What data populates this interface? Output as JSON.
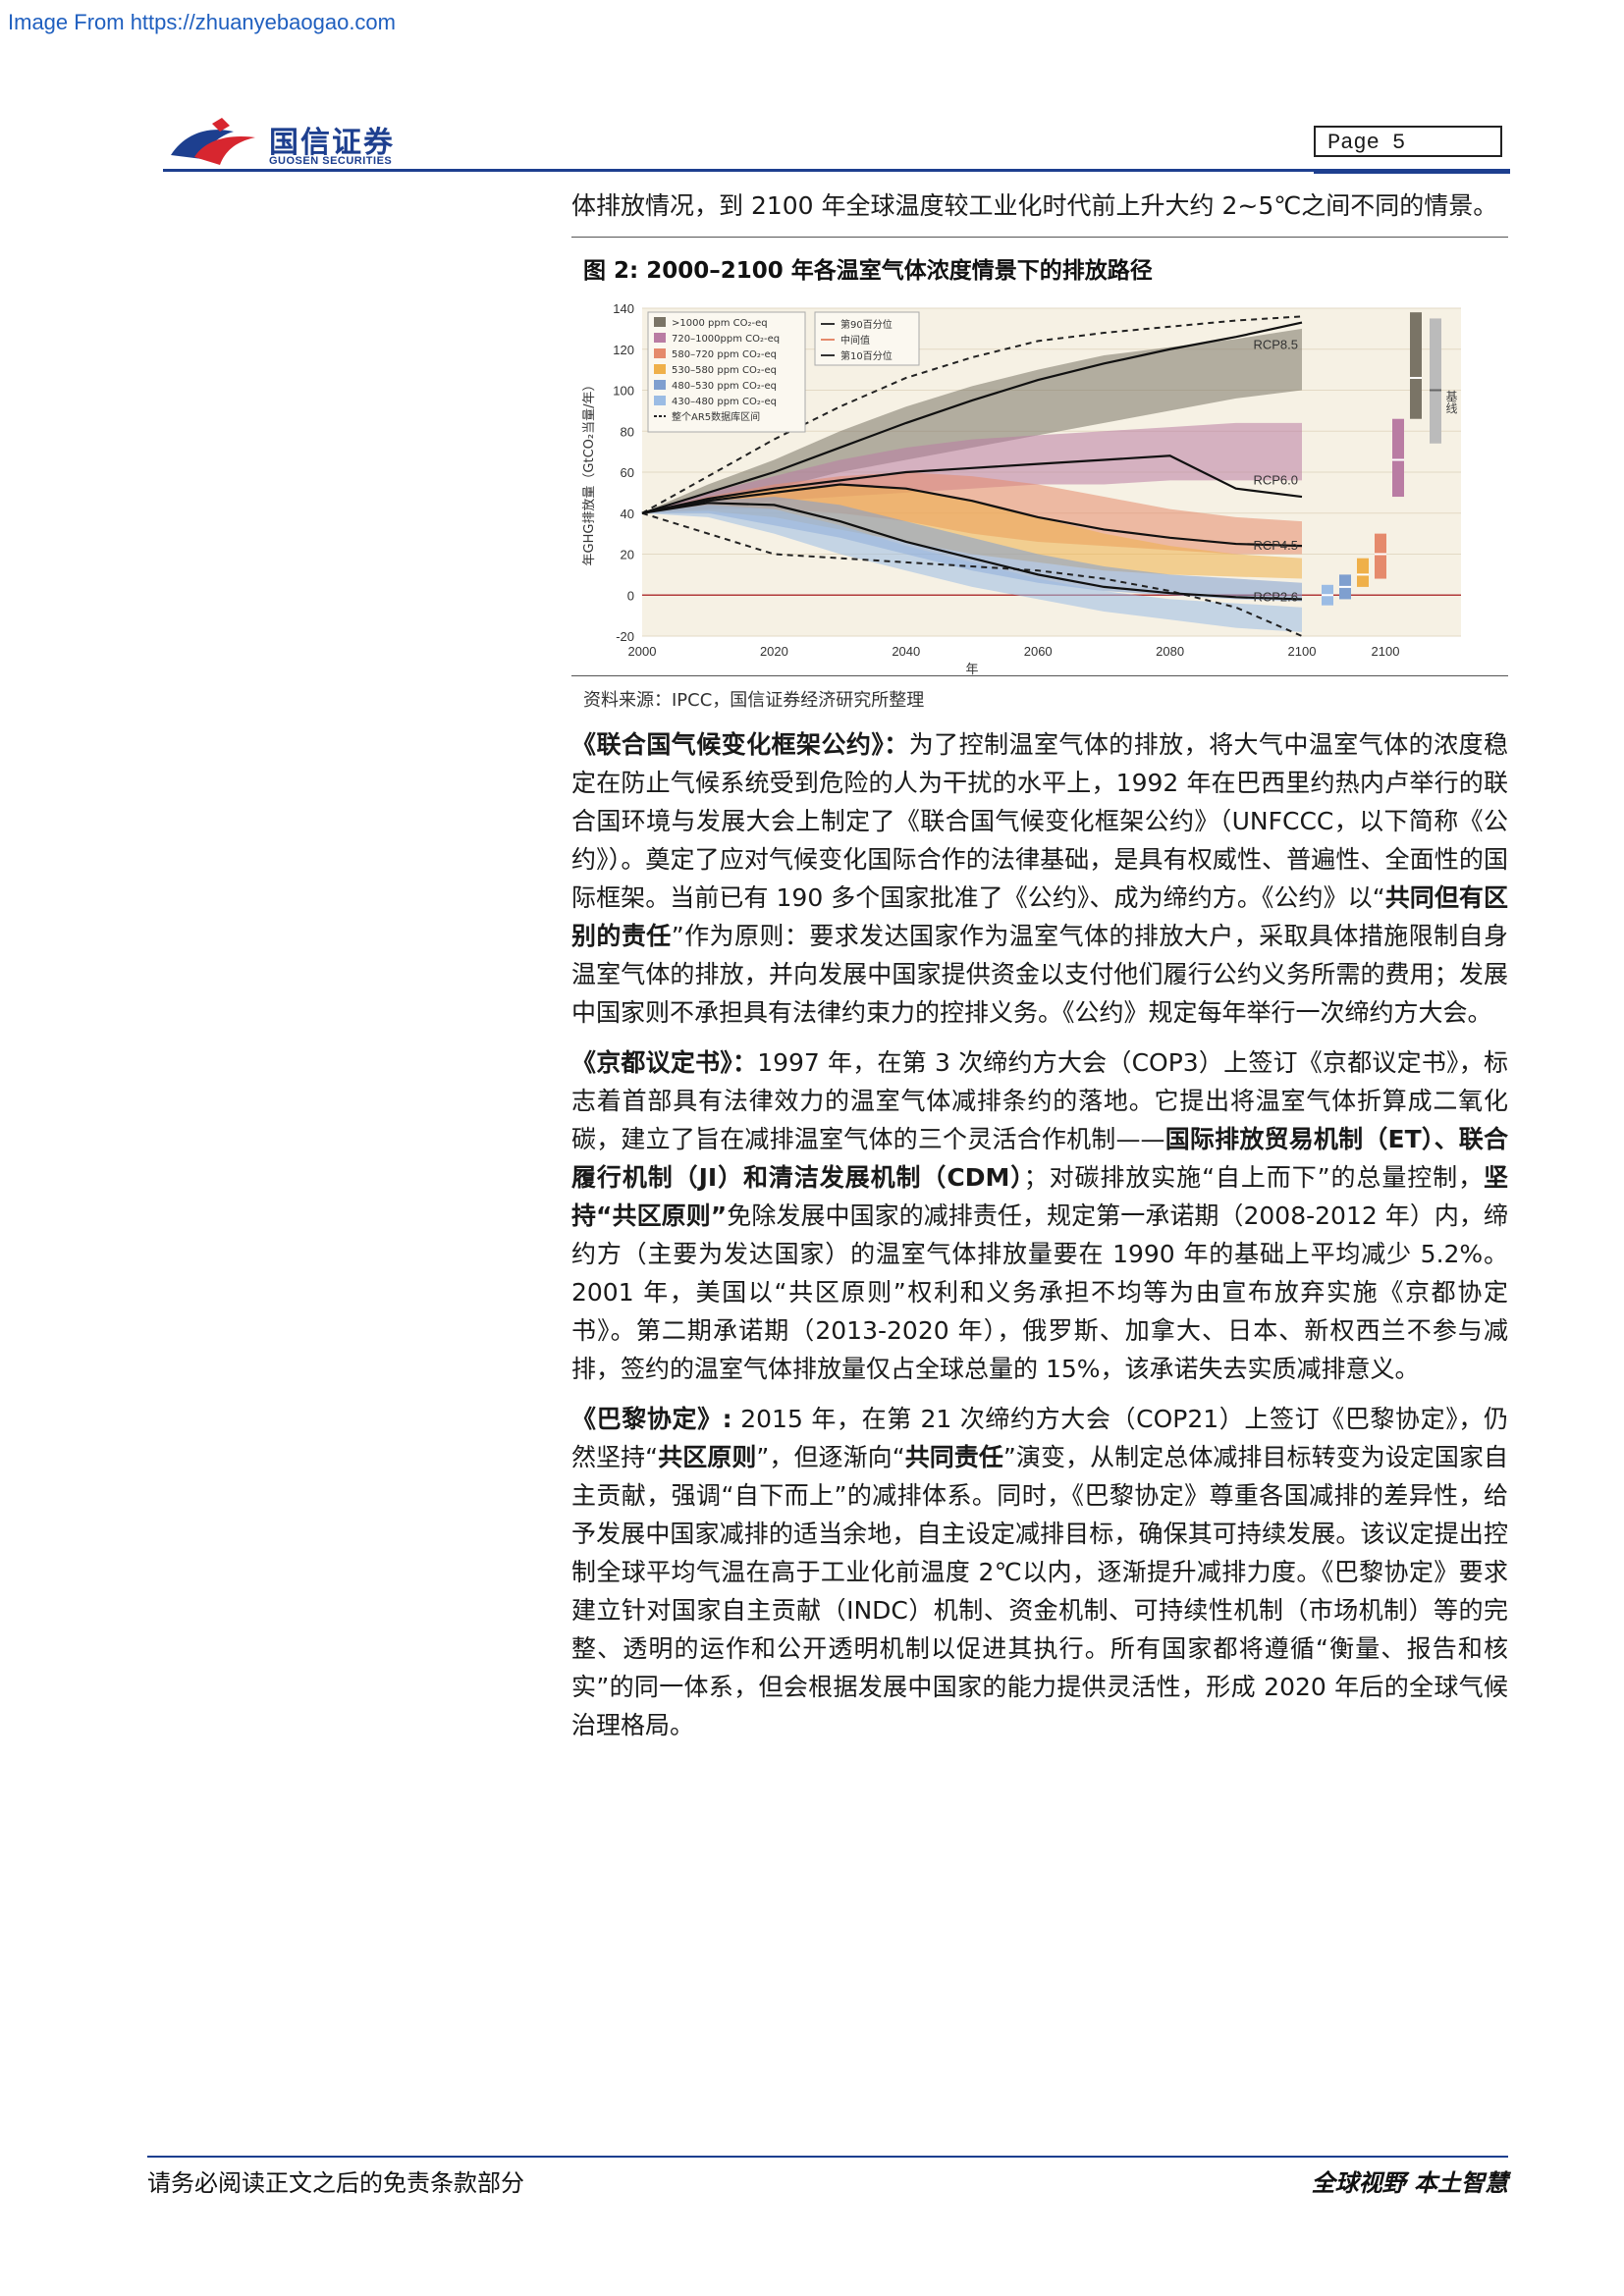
{
  "watermark": "Image From https://zhuanyebaogao.com",
  "header": {
    "logo_cn": "国信证券",
    "logo_en": "GUOSEN SECURITIES",
    "page_label": "Page  5"
  },
  "intro": "体排放情况，到 2100 年全球温度较工业化时代前上升大约 2~5℃之间不同的情景。",
  "figure": {
    "title": "图 2:  2000–2100 年各温室气体浓度情景下的排放路径",
    "source": "资料来源：IPCC，国信证券经济研究所整理"
  },
  "chart_data": {
    "type": "area",
    "title": "",
    "xlabel": "年",
    "ylabel": "年GHG排放量（GtCO₂当量/年）",
    "xlim": [
      2000,
      2100
    ],
    "ylim": [
      -20,
      140
    ],
    "x_ticks": [
      "2000",
      "2020",
      "2040",
      "2060",
      "2080",
      "2100",
      "2100"
    ],
    "y_ticks": [
      "-20",
      "0",
      "20",
      "40",
      "60",
      "80",
      "100",
      "120",
      "140"
    ],
    "legend_left": [
      ">1000   ppm CO₂-eq",
      "720–1000ppm CO₂-eq",
      "580–720  ppm CO₂-eq",
      "530–580  ppm CO₂-eq",
      "480–530  ppm CO₂-eq",
      "430–480  ppm CO₂-eq",
      "整个AR5数据库区间"
    ],
    "legend_right": [
      "第90百分位",
      "中间值",
      "第10百分位"
    ],
    "rcp_labels": [
      "RCP8.5",
      "RCP6.0",
      "RCP4.5",
      "RCP2.6"
    ],
    "side_label": "基线",
    "colors": {
      "gt1000": "#7a7466",
      "c720_1000": "#b97ca3",
      "c580_720": "#e58a6c",
      "c530_580": "#efb04a",
      "c480_530": "#7f9fcf",
      "c430_480": "#9bbce4",
      "background": "#f6f1e4"
    },
    "x": [
      2000,
      2010,
      2020,
      2030,
      2040,
      2050,
      2060,
      2070,
      2080,
      2090,
      2100
    ],
    "series": [
      {
        "name": "RCP8.5",
        "values": [
          40,
          50,
          60,
          72,
          84,
          95,
          105,
          113,
          120,
          126,
          133
        ]
      },
      {
        "name": "RCP6.0",
        "values": [
          40,
          47,
          52,
          56,
          60,
          62,
          64,
          66,
          68,
          52,
          48
        ]
      },
      {
        "name": "RCP4.5",
        "values": [
          40,
          46,
          50,
          54,
          52,
          46,
          38,
          32,
          28,
          25,
          24
        ]
      },
      {
        "name": "RCP2.6",
        "values": [
          40,
          45,
          44,
          36,
          26,
          18,
          10,
          4,
          1,
          -1,
          -2
        ]
      }
    ],
    "bands": [
      {
        "key": "gt1000",
        "upper": [
          40,
          54,
          66,
          80,
          92,
          102,
          110,
          117,
          121,
          125,
          130
        ],
        "lower": [
          40,
          46,
          52,
          60,
          66,
          72,
          78,
          84,
          90,
          96,
          100
        ]
      },
      {
        "key": "c720_1000",
        "upper": [
          40,
          50,
          58,
          66,
          72,
          76,
          78,
          80,
          82,
          84,
          84
        ],
        "lower": [
          40,
          44,
          46,
          48,
          50,
          52,
          54,
          54,
          56,
          56,
          56
        ]
      },
      {
        "key": "c580_720",
        "upper": [
          40,
          48,
          54,
          58,
          60,
          58,
          54,
          48,
          42,
          38,
          36
        ],
        "lower": [
          40,
          42,
          42,
          40,
          36,
          30,
          26,
          24,
          22,
          20,
          20
        ]
      },
      {
        "key": "c530_580",
        "upper": [
          40,
          47,
          52,
          54,
          52,
          46,
          38,
          30,
          24,
          20,
          18
        ],
        "lower": [
          40,
          41,
          38,
          32,
          26,
          20,
          16,
          12,
          10,
          9,
          8
        ]
      },
      {
        "key": "c480_530",
        "upper": [
          40,
          46,
          48,
          44,
          36,
          28,
          20,
          14,
          10,
          8,
          6
        ],
        "lower": [
          40,
          40,
          34,
          28,
          20,
          12,
          6,
          2,
          0,
          -2,
          -3
        ]
      },
      {
        "key": "c430_480",
        "upper": [
          40,
          44,
          42,
          34,
          24,
          16,
          8,
          2,
          -2,
          -4,
          -6
        ],
        "lower": [
          40,
          38,
          30,
          20,
          12,
          4,
          -2,
          -8,
          -12,
          -16,
          -18
        ]
      }
    ],
    "envelope_upper": [
      40,
      58,
      76,
      92,
      106,
      116,
      124,
      128,
      131,
      134,
      136
    ],
    "envelope_lower": [
      40,
      30,
      20,
      18,
      16,
      14,
      12,
      8,
      2,
      -6,
      -20
    ],
    "side_bars": [
      {
        "key": "c430_480",
        "low": -5,
        "mid": 0,
        "high": 5
      },
      {
        "key": "c480_530",
        "low": -2,
        "mid": 4,
        "high": 10
      },
      {
        "key": "c530_580",
        "low": 4,
        "mid": 10,
        "high": 18
      },
      {
        "key": "c580_720",
        "low": 8,
        "mid": 20,
        "high": 30
      },
      {
        "key": "c720_1000",
        "low": 48,
        "mid": 66,
        "high": 86
      },
      {
        "key": "gt1000",
        "low": 86,
        "mid": 106,
        "high": 138
      }
    ],
    "baseline_range": {
      "low": 74,
      "mid": 100,
      "high": 135
    }
  },
  "paragraphs": [
    {
      "lead": "《联合国气候变化框架公约》：",
      "text": "为了控制温室气体的排放，将大气中温室气体的浓度稳定在防止气候系统受到危险的人为干扰的水平上，1992 年在巴西里约热内卢举行的联合国环境与发展大会上制定了《联合国气候变化框架公约》（UNFCCC，以下简称《公约》）。奠定了应对气候变化国际合作的法律基础，是具有权威性、普遍性、全面性的国际框架。当前已有 190 多个国家批准了《公约》、成为缔约方。《公约》以“",
      "bold2": "共同但有区别的责任",
      "text2": "”作为原则：要求发达国家作为温室气体的排放大户，采取具体措施限制自身温室气体的排放，并向发展中国家提供资金以支付他们履行公约义务所需的费用；发展中国家则不承担具有法律约束力的控排义务。《公约》规定每年举行一次缔约方大会。"
    },
    {
      "lead": "《京都议定书》：",
      "text": "1997 年，在第 3 次缔约方大会（COP3）上签订《京都议定书》，标志着首部具有法律效力的温室气体减排条约的落地。它提出将温室气体折算成二氧化碳，建立了旨在减排温室气体的三个灵活合作机制——",
      "bold2": "国际排放贸易机制（ET）、联合履行机制（JI）和清洁发展机制（CDM）",
      "text2": "；对碳排放实施“自上而下”的总量控制，",
      "bold3": "坚持“共区原则”",
      "text3": "免除发展中国家的减排责任，规定第一承诺期（2008-2012 年）内，缔约方（主要为发达国家）的温室气体排放量要在 1990 年的基础上平均减少 5.2%。2001 年，美国以“共区原则”权利和义务承担不均等为由宣布放弃实施《京都协定书》。第二期承诺期（2013-2020 年），俄罗斯、加拿大、日本、新权西兰不参与减排，签约的温室气体排放量仅占全球总量的 15%，该承诺失去实质减排意义。"
    },
    {
      "lead": "《巴黎协定》:",
      "text": " 2015 年，在第 21 次缔约方大会（COP21）上签订《巴黎协定》，仍然坚持“",
      "bold2": "共区原则",
      "text2": "”，但逐渐向“",
      "bold3": "共同责任",
      "text3": "”演变，从制定总体减排目标转变为设定国家自主贡献，强调“自下而上”的减排体系。同时，《巴黎协定》尊重各国减排的差异性，给予发展中国家减排的适当余地，自主设定减排目标，确保其可持续发展。该议定提出控制全球平均气温在高于工业化前温度 2℃以内，逐渐提升减排力度。《巴黎协定》要求建立针对国家自主贡献（INDC）机制、资金机制、可持续性机制（市场机制）等的完整、透明的运作和公开透明机制以促进其执行。所有国家都将遵循“衡量、报告和核实”的同一体系，但会根据发展中国家的能力提供灵活性，形成 2020 年后的全球气候治理格局。"
    }
  ],
  "footer": {
    "left": "请务必阅读正文之后的免责条款部分",
    "right": "全球视野   本土智慧"
  }
}
